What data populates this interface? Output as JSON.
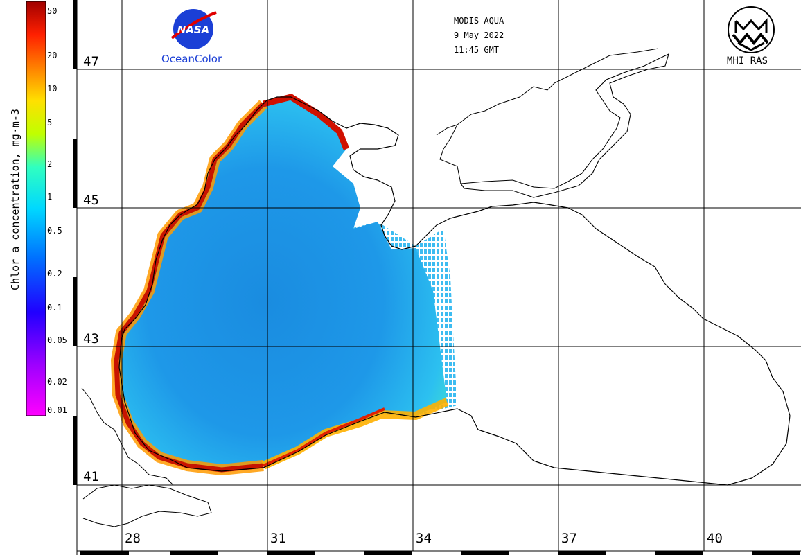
{
  "header": {
    "sensor": "MODIS-AQUA",
    "date": "9 May 2022",
    "time": "11:45 GMT"
  },
  "logos": {
    "nasa": "NASA",
    "ocean_color": "OceanColor",
    "mhi": "MHI RAS"
  },
  "colorbar": {
    "title": "Chlor_a concentration, mg·m-3",
    "ticks": [
      "50",
      "20",
      "10",
      "5",
      "2",
      "1",
      "0.5",
      "0.2",
      "0.1",
      "0.05",
      "0.02",
      "0.01"
    ],
    "scale": "log",
    "range": [
      0.01,
      50
    ],
    "colors": [
      "#ff00ff",
      "#8000ff",
      "#0000ff",
      "#0080ff",
      "#00d8ff",
      "#40ffb0",
      "#ffff00",
      "#ff9000",
      "#ff2000",
      "#a00000"
    ]
  },
  "grid": {
    "latitudes": [
      "47",
      "45",
      "43",
      "41"
    ],
    "longitudes": [
      "28",
      "31",
      "34",
      "37",
      "40"
    ]
  },
  "palette": {
    "water_open": "#1a8fe0",
    "water_mid": "#2ab0f0",
    "coastal_high": "#d81a00",
    "coastal_mid": "#ff9a00",
    "gridline": "#000000",
    "land": "#ffffff"
  }
}
